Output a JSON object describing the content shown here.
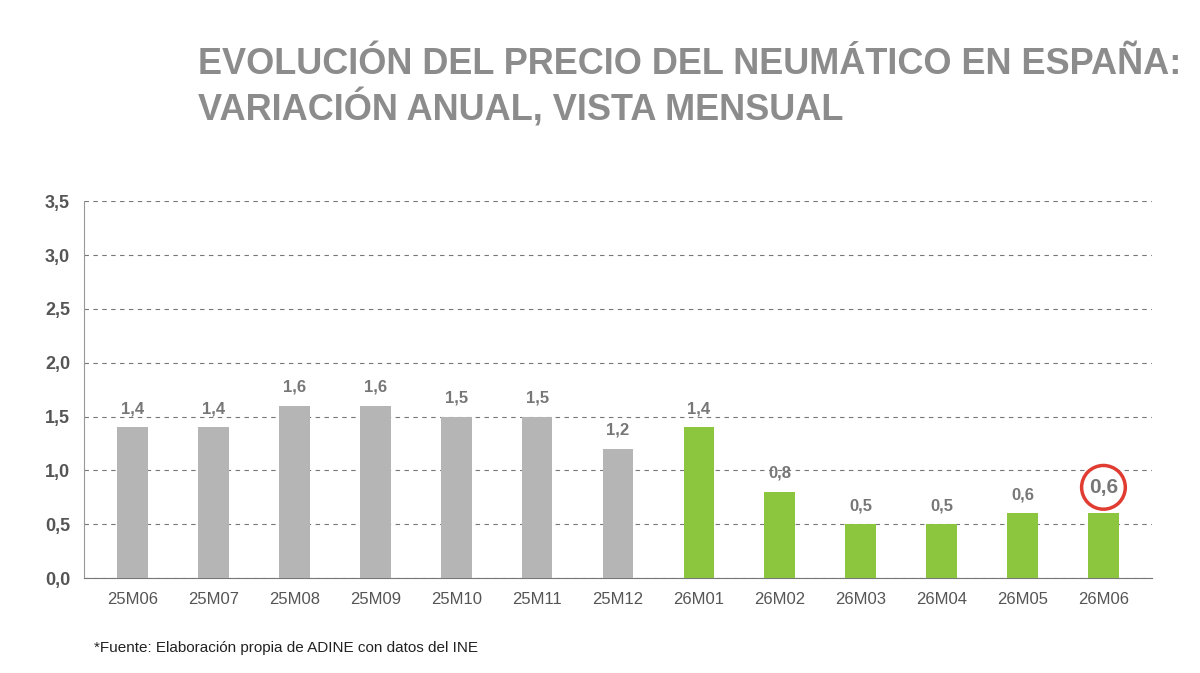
{
  "chart_data": {
    "type": "bar",
    "title": "EVOLUCIÓN DEL PRECIO DEL NEUMÁTICO EN ESPAÑA:\nVARIACIÓN ANUAL, VISTA MENSUAL",
    "source": "*Fuente: Elaboración propia de ADINE con datos del INE",
    "categories": [
      "25M06",
      "25M07",
      "25M08",
      "25M09",
      "25M10",
      "25M11",
      "25M12",
      "26M01",
      "26M02",
      "26M03",
      "26M04",
      "26M05",
      "26M06"
    ],
    "values": [
      1.4,
      1.4,
      1.6,
      1.6,
      1.5,
      1.5,
      1.2,
      1.4,
      0.8,
      0.5,
      0.5,
      0.6,
      0.6
    ],
    "value_labels": [
      "1,4",
      "1,4",
      "1,6",
      "1,6",
      "1,5",
      "1,5",
      "1,2",
      "1,4",
      "0,8",
      "0,5",
      "0,5",
      "0,6",
      "0,6"
    ],
    "colors": [
      "#b5b5b5",
      "#b5b5b5",
      "#b5b5b5",
      "#b5b5b5",
      "#b5b5b5",
      "#b5b5b5",
      "#b5b5b5",
      "#8cc63f",
      "#8cc63f",
      "#8cc63f",
      "#8cc63f",
      "#8cc63f",
      "#8cc63f"
    ],
    "data_labels": true,
    "grid": true,
    "ylim": [
      0,
      3.5
    ],
    "yticks": [
      {
        "value": 0,
        "label": "0,0"
      },
      {
        "value": 0.5,
        "label": "0,5"
      },
      {
        "value": 1,
        "label": "1,0"
      },
      {
        "value": 1.5,
        "label": "1,5"
      },
      {
        "value": 2,
        "label": "2,0"
      },
      {
        "value": 2.5,
        "label": "2,5"
      },
      {
        "value": 3,
        "label": "3,0"
      },
      {
        "value": 3.5,
        "label": "3,5"
      }
    ]
  }
}
